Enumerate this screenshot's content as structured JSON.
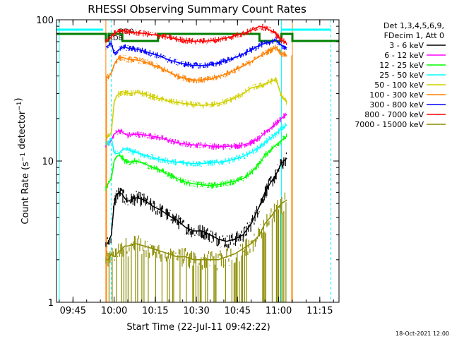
{
  "chart_data": {
    "type": "line",
    "title": "RHESSI Observing Summary Count Rates",
    "xlabel": "Start Time (22-Jul-11 09:42:22)",
    "ylabel": "Count Rate (s⁻¹ detector⁻¹)",
    "yscale": "log",
    "ylim": [
      1,
      100
    ],
    "xlim": [
      "09:39",
      "11:22"
    ],
    "x_ticks": [
      "09:45",
      "10:00",
      "10:15",
      "10:30",
      "10:45",
      "11:00",
      "11:15"
    ],
    "y_ticks": [
      "1",
      "10",
      "100"
    ],
    "grid": false,
    "legend_header": [
      "Det 1,3,4,5,6,9,",
      "FDecim 1, Att 0"
    ],
    "legend_placement": "right",
    "timestamp": "18-Oct-2021 12:00",
    "annotations": [
      {
        "label": "RD0",
        "x": "10:01",
        "y": 78,
        "color": "#00a000"
      },
      {
        "label": "RD8",
        "x": "09:57",
        "y": 70,
        "color": "#00a000"
      }
    ],
    "night_start": "09:57",
    "night_end": "11:05",
    "cyan_marks": [
      "09:40",
      "09:59",
      "11:01",
      "11:19"
    ],
    "x_times": [
      "09:57",
      "09:58",
      "09:59",
      "10:00",
      "10:01",
      "10:02",
      "10:03",
      "10:04",
      "10:05",
      "10:08",
      "10:11",
      "10:14",
      "10:17",
      "10:20",
      "10:23",
      "10:26",
      "10:29",
      "10:32",
      "10:35",
      "10:38",
      "10:41",
      "10:44",
      "10:47",
      "10:50",
      "10:53",
      "10:55",
      "10:57",
      "10:59",
      "11:01",
      "11:03"
    ],
    "series": [
      {
        "name": "3 - 6 keV",
        "color": "#000000",
        "values": [
          2.5,
          2.7,
          3.0,
          5.0,
          5.8,
          6.0,
          5.8,
          5.4,
          5.2,
          5.5,
          5.3,
          4.8,
          4.5,
          4.1,
          3.8,
          3.4,
          3.2,
          3.2,
          3.0,
          2.8,
          2.7,
          2.8,
          3.0,
          3.6,
          4.8,
          6.0,
          7.0,
          8.0,
          9.6,
          10.5
        ]
      },
      {
        "name": "6 - 12 keV",
        "color": "#ff00ff",
        "values": [
          13.0,
          13.5,
          14.0,
          15.5,
          16.0,
          16.5,
          16.0,
          15.5,
          15.2,
          15.5,
          15.3,
          15.0,
          14.6,
          14.0,
          13.5,
          13.2,
          13.0,
          13.0,
          12.8,
          12.6,
          12.7,
          12.8,
          13.0,
          13.5,
          14.5,
          16.0,
          17.0,
          18.5,
          20.0,
          21.5
        ]
      },
      {
        "name": "12 - 25 keV",
        "color": "#00ff00",
        "values": [
          6.5,
          7.0,
          7.5,
          10.0,
          10.8,
          11.0,
          10.5,
          10.0,
          9.8,
          10.0,
          9.6,
          9.0,
          8.6,
          8.0,
          7.5,
          7.1,
          6.9,
          6.8,
          6.7,
          6.8,
          7.0,
          7.2,
          7.5,
          8.3,
          9.6,
          11.0,
          12.0,
          13.0,
          14.0,
          15.0
        ]
      },
      {
        "name": "25 - 50 keV",
        "color": "#00ffff",
        "values": [
          13.0,
          13.5,
          14.5,
          11.5,
          11.3,
          11.5,
          12.0,
          12.2,
          12.0,
          11.5,
          11.0,
          10.6,
          10.2,
          10.0,
          9.8,
          9.7,
          9.6,
          9.6,
          9.7,
          9.8,
          10.0,
          10.3,
          10.8,
          11.5,
          12.5,
          13.5,
          14.5,
          15.5,
          17.0,
          18.0
        ]
      },
      {
        "name": "50 - 100 keV",
        "color": "#d0d000",
        "values": [
          14.5,
          15.0,
          16.0,
          26.0,
          29.0,
          30.0,
          31.0,
          30.5,
          30.0,
          30.5,
          30.0,
          28.5,
          27.5,
          26.5,
          26.0,
          25.5,
          25.0,
          24.8,
          25.0,
          25.5,
          26.5,
          28.0,
          30.0,
          33.0,
          34.0,
          35.0,
          36.5,
          38.0,
          29.0,
          26.0
        ]
      },
      {
        "name": "100 - 300 keV",
        "color": "#ff8000",
        "values": [
          38.0,
          40.0,
          42.0,
          48.0,
          52.0,
          53.5,
          54.0,
          53.5,
          52.5,
          52.0,
          50.5,
          48.0,
          45.5,
          42.5,
          40.0,
          38.5,
          37.5,
          37.5,
          38.0,
          39.5,
          41.5,
          44.0,
          47.0,
          50.5,
          55.0,
          58.0,
          61.0,
          64.0,
          58.0,
          56.0
        ]
      },
      {
        "name": "300 - 800 keV",
        "color": "#0000ff",
        "values": [
          64.0,
          66.0,
          68.0,
          58.0,
          59.5,
          62.0,
          63.5,
          64.0,
          63.0,
          62.0,
          60.0,
          57.5,
          55.0,
          52.0,
          50.0,
          48.5,
          47.5,
          47.5,
          48.0,
          49.5,
          51.5,
          54.0,
          57.0,
          61.0,
          66.0,
          68.0,
          70.0,
          72.0,
          66.0,
          63.0
        ]
      },
      {
        "name": "800 - 7000 keV",
        "color": "#ff0000",
        "values": [
          70.0,
          72.0,
          76.0,
          80.0,
          82.0,
          83.0,
          84.0,
          83.0,
          82.0,
          81.0,
          80.0,
          78.5,
          77.0,
          75.0,
          73.0,
          71.5,
          70.5,
          70.5,
          71.0,
          72.5,
          74.5,
          77.0,
          80.0,
          84.0,
          90.0,
          88.0,
          84.0,
          80.0,
          72.0,
          68.0
        ]
      },
      {
        "name": "7000 - 15000 keV",
        "color": "#8c8c00",
        "values": [
          2.0,
          2.0,
          2.2,
          2.1,
          2.2,
          2.3,
          2.4,
          2.5,
          2.5,
          2.6,
          2.5,
          2.4,
          2.3,
          2.2,
          2.1,
          2.1,
          2.0,
          2.0,
          2.0,
          2.0,
          2.1,
          2.2,
          2.4,
          2.6,
          3.0,
          3.6,
          4.0,
          4.5,
          5.0,
          5.3
        ]
      }
    ]
  }
}
